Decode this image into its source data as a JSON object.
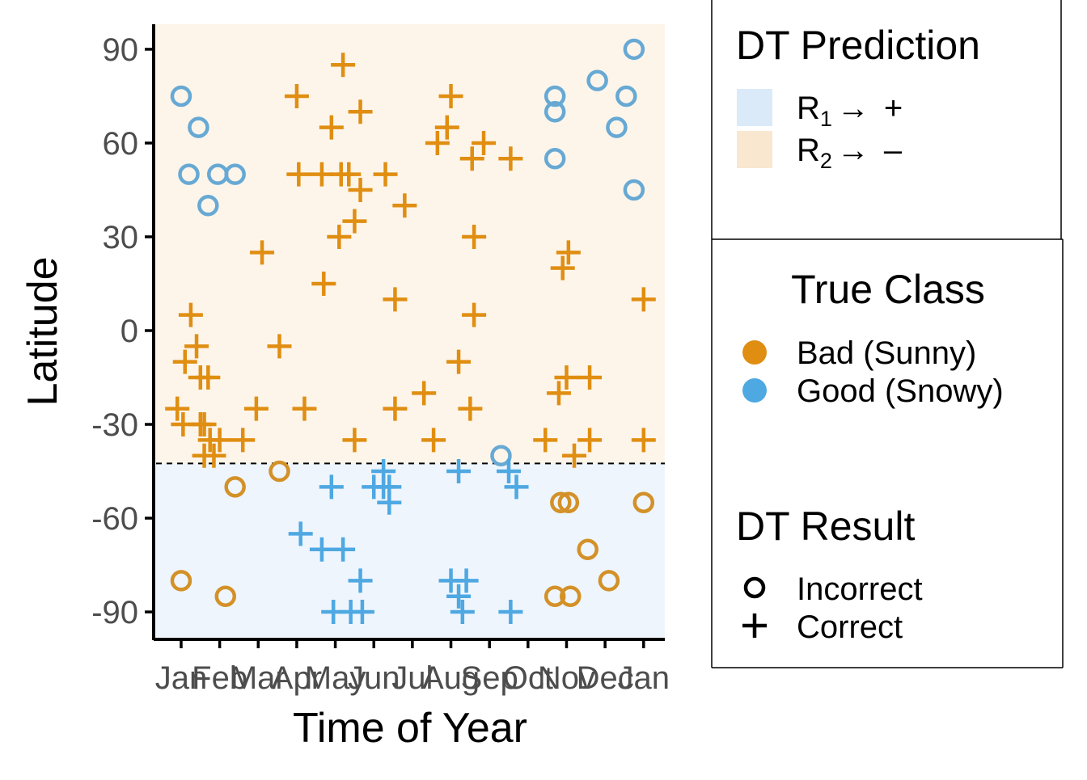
{
  "chart_data": {
    "type": "scatter",
    "xlabel": "Time of Year",
    "ylabel": "Latitude",
    "ylim": [
      -98,
      98
    ],
    "xlim": [
      0.35,
      13.55
    ],
    "x_ticks": [
      {
        "v": 1,
        "label": "Jan"
      },
      {
        "v": 2,
        "label": "Feb"
      },
      {
        "v": 3,
        "label": "Mar"
      },
      {
        "v": 4,
        "label": "Apr"
      },
      {
        "v": 5,
        "label": "May"
      },
      {
        "v": 6,
        "label": "Jun"
      },
      {
        "v": 7,
        "label": "Jul"
      },
      {
        "v": 8,
        "label": "Aug"
      },
      {
        "v": 9,
        "label": "Sep"
      },
      {
        "v": 10,
        "label": "Oct"
      },
      {
        "v": 11,
        "label": "Nov"
      },
      {
        "v": 12,
        "label": "Dec"
      },
      {
        "v": 13,
        "label": "Jan"
      }
    ],
    "y_ticks": [
      {
        "v": 90,
        "label": "90"
      },
      {
        "v": 60,
        "label": "60"
      },
      {
        "v": 30,
        "label": "30"
      },
      {
        "v": 0,
        "label": "0"
      },
      {
        "v": -30,
        "label": "-30"
      },
      {
        "v": -60,
        "label": "-60"
      },
      {
        "v": -90,
        "label": "-90"
      }
    ],
    "split_latitude": -42.5,
    "regions": [
      {
        "name": "R1",
        "from": -98,
        "to": -42.5,
        "fill": "#eef5fc",
        "legend_fill": "#daeaf8"
      },
      {
        "name": "R2",
        "from": -42.5,
        "to": 98,
        "fill": "#fdf5ea",
        "legend_fill": "#f9e7cf"
      }
    ],
    "colors": {
      "bad": "#e08e12",
      "good": "#4ea8e2",
      "bad_incorrect": "#d39128",
      "good_incorrect": "#67a9d4"
    },
    "points": [
      {
        "x": 1.0,
        "y": 75,
        "cls": "good",
        "res": "incorrect"
      },
      {
        "x": 1.2,
        "y": 50,
        "cls": "good",
        "res": "incorrect"
      },
      {
        "x": 1.45,
        "y": 65,
        "cls": "good",
        "res": "incorrect"
      },
      {
        "x": 1.7,
        "y": 40,
        "cls": "good",
        "res": "incorrect"
      },
      {
        "x": 1.95,
        "y": 50,
        "cls": "good",
        "res": "incorrect"
      },
      {
        "x": 2.4,
        "y": 50,
        "cls": "good",
        "res": "incorrect"
      },
      {
        "x": 9.3,
        "y": -40,
        "cls": "good",
        "res": "incorrect"
      },
      {
        "x": 10.7,
        "y": 75,
        "cls": "good",
        "res": "incorrect"
      },
      {
        "x": 10.7,
        "y": 70,
        "cls": "good",
        "res": "incorrect"
      },
      {
        "x": 10.7,
        "y": 55,
        "cls": "good",
        "res": "incorrect"
      },
      {
        "x": 11.8,
        "y": 80,
        "cls": "good",
        "res": "incorrect"
      },
      {
        "x": 12.3,
        "y": 65,
        "cls": "good",
        "res": "incorrect"
      },
      {
        "x": 12.55,
        "y": 75,
        "cls": "good",
        "res": "incorrect"
      },
      {
        "x": 12.75,
        "y": 90,
        "cls": "good",
        "res": "incorrect"
      },
      {
        "x": 12.75,
        "y": 45,
        "cls": "good",
        "res": "incorrect"
      },
      {
        "x": 1.0,
        "y": -80,
        "cls": "bad",
        "res": "incorrect"
      },
      {
        "x": 2.15,
        "y": -85,
        "cls": "bad",
        "res": "incorrect"
      },
      {
        "x": 2.4,
        "y": -50,
        "cls": "bad",
        "res": "incorrect"
      },
      {
        "x": 3.55,
        "y": -45,
        "cls": "bad",
        "res": "incorrect"
      },
      {
        "x": 10.7,
        "y": -85,
        "cls": "bad",
        "res": "incorrect"
      },
      {
        "x": 10.85,
        "y": -55,
        "cls": "bad",
        "res": "incorrect"
      },
      {
        "x": 11.05,
        "y": -55,
        "cls": "bad",
        "res": "incorrect"
      },
      {
        "x": 11.1,
        "y": -85,
        "cls": "bad",
        "res": "incorrect"
      },
      {
        "x": 11.55,
        "y": -70,
        "cls": "bad",
        "res": "incorrect"
      },
      {
        "x": 12.1,
        "y": -80,
        "cls": "bad",
        "res": "incorrect"
      },
      {
        "x": 13.0,
        "y": -55,
        "cls": "bad",
        "res": "incorrect"
      },
      {
        "x": 0.9,
        "y": -25,
        "cls": "bad",
        "res": "correct"
      },
      {
        "x": 1.05,
        "y": -30,
        "cls": "bad",
        "res": "correct"
      },
      {
        "x": 1.1,
        "y": -10,
        "cls": "bad",
        "res": "correct"
      },
      {
        "x": 1.25,
        "y": 5,
        "cls": "bad",
        "res": "correct"
      },
      {
        "x": 1.4,
        "y": -5,
        "cls": "bad",
        "res": "correct"
      },
      {
        "x": 1.5,
        "y": -30,
        "cls": "bad",
        "res": "correct"
      },
      {
        "x": 1.5,
        "y": -15,
        "cls": "bad",
        "res": "correct"
      },
      {
        "x": 1.6,
        "y": -30,
        "cls": "bad",
        "res": "correct"
      },
      {
        "x": 1.6,
        "y": -40,
        "cls": "bad",
        "res": "correct"
      },
      {
        "x": 1.7,
        "y": -15,
        "cls": "bad",
        "res": "correct"
      },
      {
        "x": 1.75,
        "y": -35,
        "cls": "bad",
        "res": "correct"
      },
      {
        "x": 1.85,
        "y": -40,
        "cls": "bad",
        "res": "correct"
      },
      {
        "x": 2.0,
        "y": -35,
        "cls": "bad",
        "res": "correct"
      },
      {
        "x": 2.6,
        "y": -35,
        "cls": "bad",
        "res": "correct"
      },
      {
        "x": 2.95,
        "y": -25,
        "cls": "bad",
        "res": "correct"
      },
      {
        "x": 3.1,
        "y": 25,
        "cls": "bad",
        "res": "correct"
      },
      {
        "x": 3.55,
        "y": -5,
        "cls": "bad",
        "res": "correct"
      },
      {
        "x": 4.0,
        "y": 75,
        "cls": "bad",
        "res": "correct"
      },
      {
        "x": 4.05,
        "y": 50,
        "cls": "bad",
        "res": "correct"
      },
      {
        "x": 4.2,
        "y": -25,
        "cls": "bad",
        "res": "correct"
      },
      {
        "x": 4.65,
        "y": 50,
        "cls": "bad",
        "res": "correct"
      },
      {
        "x": 4.7,
        "y": 15,
        "cls": "bad",
        "res": "correct"
      },
      {
        "x": 4.9,
        "y": 65,
        "cls": "bad",
        "res": "correct"
      },
      {
        "x": 5.2,
        "y": 85,
        "cls": "bad",
        "res": "correct"
      },
      {
        "x": 5.15,
        "y": 50,
        "cls": "bad",
        "res": "correct"
      },
      {
        "x": 5.1,
        "y": 30,
        "cls": "bad",
        "res": "correct"
      },
      {
        "x": 5.35,
        "y": 50,
        "cls": "bad",
        "res": "correct"
      },
      {
        "x": 5.5,
        "y": 35,
        "cls": "bad",
        "res": "correct"
      },
      {
        "x": 5.65,
        "y": 45,
        "cls": "bad",
        "res": "correct"
      },
      {
        "x": 5.5,
        "y": -35,
        "cls": "bad",
        "res": "correct"
      },
      {
        "x": 5.65,
        "y": 70,
        "cls": "bad",
        "res": "correct"
      },
      {
        "x": 6.3,
        "y": 50,
        "cls": "bad",
        "res": "correct"
      },
      {
        "x": 6.55,
        "y": 10,
        "cls": "bad",
        "res": "correct"
      },
      {
        "x": 6.55,
        "y": -25,
        "cls": "bad",
        "res": "correct"
      },
      {
        "x": 6.8,
        "y": 40,
        "cls": "bad",
        "res": "correct"
      },
      {
        "x": 7.3,
        "y": -20,
        "cls": "bad",
        "res": "correct"
      },
      {
        "x": 7.55,
        "y": -35,
        "cls": "bad",
        "res": "correct"
      },
      {
        "x": 7.65,
        "y": 60,
        "cls": "bad",
        "res": "correct"
      },
      {
        "x": 7.9,
        "y": 65,
        "cls": "bad",
        "res": "correct"
      },
      {
        "x": 8.0,
        "y": 75,
        "cls": "bad",
        "res": "correct"
      },
      {
        "x": 8.2,
        "y": -10,
        "cls": "bad",
        "res": "correct"
      },
      {
        "x": 8.5,
        "y": -25,
        "cls": "bad",
        "res": "correct"
      },
      {
        "x": 8.55,
        "y": 55,
        "cls": "bad",
        "res": "correct"
      },
      {
        "x": 8.6,
        "y": 30,
        "cls": "bad",
        "res": "correct"
      },
      {
        "x": 8.6,
        "y": 5,
        "cls": "bad",
        "res": "correct"
      },
      {
        "x": 8.85,
        "y": 60,
        "cls": "bad",
        "res": "correct"
      },
      {
        "x": 9.55,
        "y": 55,
        "cls": "bad",
        "res": "correct"
      },
      {
        "x": 10.45,
        "y": -35,
        "cls": "bad",
        "res": "correct"
      },
      {
        "x": 10.8,
        "y": -20,
        "cls": "bad",
        "res": "correct"
      },
      {
        "x": 10.9,
        "y": 20,
        "cls": "bad",
        "res": "correct"
      },
      {
        "x": 11.0,
        "y": -15,
        "cls": "bad",
        "res": "correct"
      },
      {
        "x": 11.05,
        "y": 25,
        "cls": "bad",
        "res": "correct"
      },
      {
        "x": 11.2,
        "y": -40,
        "cls": "bad",
        "res": "correct"
      },
      {
        "x": 11.6,
        "y": -15,
        "cls": "bad",
        "res": "correct"
      },
      {
        "x": 11.6,
        "y": -35,
        "cls": "bad",
        "res": "correct"
      },
      {
        "x": 13.0,
        "y": 10,
        "cls": "bad",
        "res": "correct"
      },
      {
        "x": 13.0,
        "y": -35,
        "cls": "bad",
        "res": "correct"
      },
      {
        "x": 4.1,
        "y": -65,
        "cls": "good",
        "res": "correct"
      },
      {
        "x": 4.65,
        "y": -70,
        "cls": "good",
        "res": "correct"
      },
      {
        "x": 4.9,
        "y": -50,
        "cls": "good",
        "res": "correct"
      },
      {
        "x": 5.2,
        "y": -70,
        "cls": "good",
        "res": "correct"
      },
      {
        "x": 4.95,
        "y": -90,
        "cls": "good",
        "res": "correct"
      },
      {
        "x": 5.4,
        "y": -90,
        "cls": "good",
        "res": "correct"
      },
      {
        "x": 5.65,
        "y": -80,
        "cls": "good",
        "res": "correct"
      },
      {
        "x": 5.7,
        "y": -90,
        "cls": "good",
        "res": "correct"
      },
      {
        "x": 6.0,
        "y": -50,
        "cls": "good",
        "res": "correct"
      },
      {
        "x": 6.25,
        "y": -50,
        "cls": "good",
        "res": "correct"
      },
      {
        "x": 6.25,
        "y": -45,
        "cls": "good",
        "res": "correct"
      },
      {
        "x": 6.4,
        "y": -50,
        "cls": "good",
        "res": "correct"
      },
      {
        "x": 6.4,
        "y": -55,
        "cls": "good",
        "res": "correct"
      },
      {
        "x": 8.0,
        "y": -80,
        "cls": "good",
        "res": "correct"
      },
      {
        "x": 8.2,
        "y": -45,
        "cls": "good",
        "res": "correct"
      },
      {
        "x": 8.2,
        "y": -85,
        "cls": "good",
        "res": "correct"
      },
      {
        "x": 8.3,
        "y": -90,
        "cls": "good",
        "res": "correct"
      },
      {
        "x": 8.4,
        "y": -80,
        "cls": "good",
        "res": "correct"
      },
      {
        "x": 9.5,
        "y": -45,
        "cls": "good",
        "res": "correct"
      },
      {
        "x": 9.7,
        "y": -50,
        "cls": "good",
        "res": "correct"
      },
      {
        "x": 9.55,
        "y": -90,
        "cls": "good",
        "res": "correct"
      }
    ]
  },
  "legend": {
    "prediction": {
      "title": "DT Prediction",
      "items": [
        {
          "r": "R",
          "sub": "1",
          "arrow": "→",
          "sign": "+"
        },
        {
          "r": "R",
          "sub": "2",
          "arrow": "→",
          "sign": "–"
        }
      ]
    },
    "true_class": {
      "title": "True Class",
      "items": [
        {
          "label": "Bad (Sunny)",
          "color": "#e08e12"
        },
        {
          "label": "Good (Snowy)",
          "color": "#4ea8e2"
        }
      ]
    },
    "result": {
      "title": "DT Result",
      "items": [
        {
          "label": "Incorrect",
          "shape": "circle-icon"
        },
        {
          "label": "Correct",
          "shape": "plus-icon"
        }
      ]
    }
  }
}
